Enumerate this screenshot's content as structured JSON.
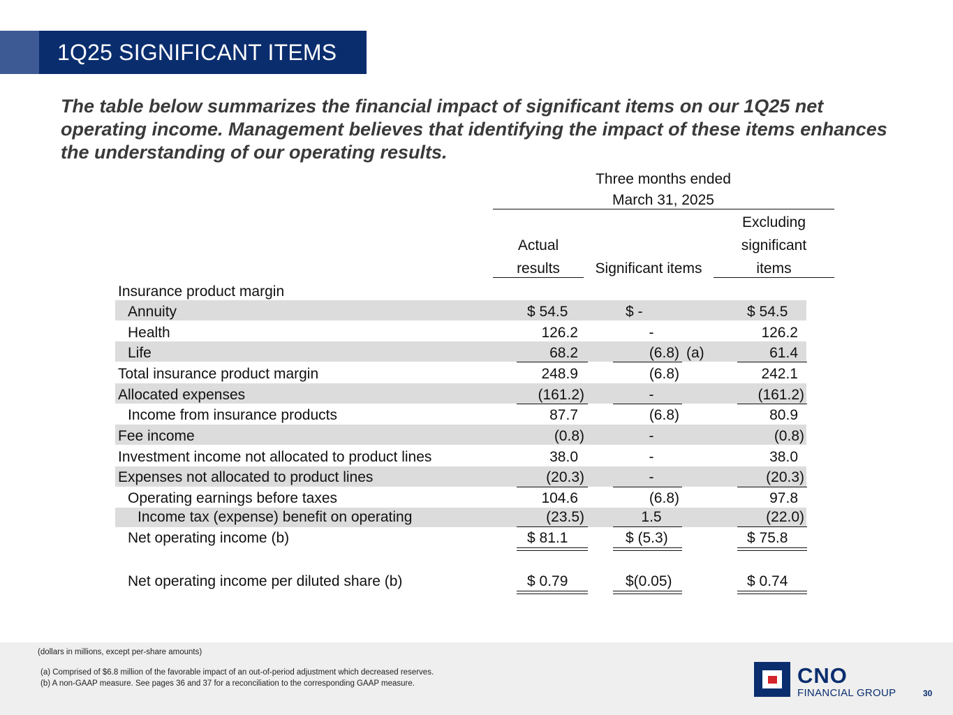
{
  "title": "1Q25 SIGNIFICANT ITEMS",
  "intro": "The table below summarizes the financial impact of significant items on our 1Q25 net operating income. Management believes that identifying the impact of these items enhances the understanding of our operating results.",
  "table": {
    "period_line1": "Three months ended",
    "period_line2": "March 31, 2025",
    "col_actual_1": "Actual",
    "col_actual_2": "results",
    "col_sig": "Significant items",
    "col_excl_1": "Excluding",
    "col_excl_2": "significant",
    "col_excl_3": "items",
    "section_header": "Insurance product margin",
    "rows": [
      {
        "label": "Annuity",
        "actual": "$  54.5",
        "sig": "$   -",
        "note": "",
        "excl": "$  54.5"
      },
      {
        "label": "Health",
        "actual": "126.2",
        "sig": "-",
        "note": "",
        "excl": "126.2"
      },
      {
        "label": "Life",
        "actual": "68.2",
        "sig": "(6.8)",
        "note": "(a)",
        "excl": "61.4"
      },
      {
        "label": "Total insurance product margin",
        "actual": "248.9",
        "sig": "(6.8)",
        "note": "",
        "excl": "242.1"
      },
      {
        "label": "Allocated expenses",
        "actual": "(161.2)",
        "sig": "-",
        "note": "",
        "excl": "(161.2)"
      },
      {
        "label": "Income from insurance products",
        "actual": "87.7",
        "sig": "(6.8)",
        "note": "",
        "excl": "80.9"
      },
      {
        "label": "Fee income",
        "actual": "(0.8)",
        "sig": "-",
        "note": "",
        "excl": "(0.8)"
      },
      {
        "label": "Investment income not allocated to product lines",
        "actual": "38.0",
        "sig": "-",
        "note": "",
        "excl": "38.0"
      },
      {
        "label": "Expenses not allocated to product lines",
        "actual": "(20.3)",
        "sig": "-",
        "note": "",
        "excl": "(20.3)"
      },
      {
        "label": "Operating earnings before taxes",
        "actual": "104.6",
        "sig": "(6.8)",
        "note": "",
        "excl": "97.8"
      },
      {
        "label": "Income tax (expense) benefit on operating",
        "actual": "(23.5)",
        "sig": "1.5",
        "note": "",
        "excl": "(22.0)"
      },
      {
        "label": "Net operating income (b)",
        "actual": "$  81.1",
        "sig": "$  (5.3)",
        "note": "",
        "excl": "$  75.8"
      },
      {
        "label": "Net operating income per diluted share (b)",
        "actual": "$  0.79",
        "sig": "$(0.05)",
        "note": "",
        "excl": "$  0.74"
      }
    ]
  },
  "footer": {
    "units": "(dollars in millions, except per-share amounts)",
    "note_a": "(a) Comprised of $6.8 million of the favorable impact of an out-of-period adjustment which decreased reserves.",
    "note_b": "(b) A non-GAAP measure. See pages 36 and 37 for a reconciliation to the corresponding GAAP measure.",
    "logo_name": "CNO",
    "logo_sub": "FINANCIAL GROUP",
    "page_number": "30"
  },
  "colors": {
    "title_bar": "#0a2d6e",
    "accent": "#3d5a94",
    "band": "#dcdcdc",
    "logo_red": "#d5242b"
  }
}
